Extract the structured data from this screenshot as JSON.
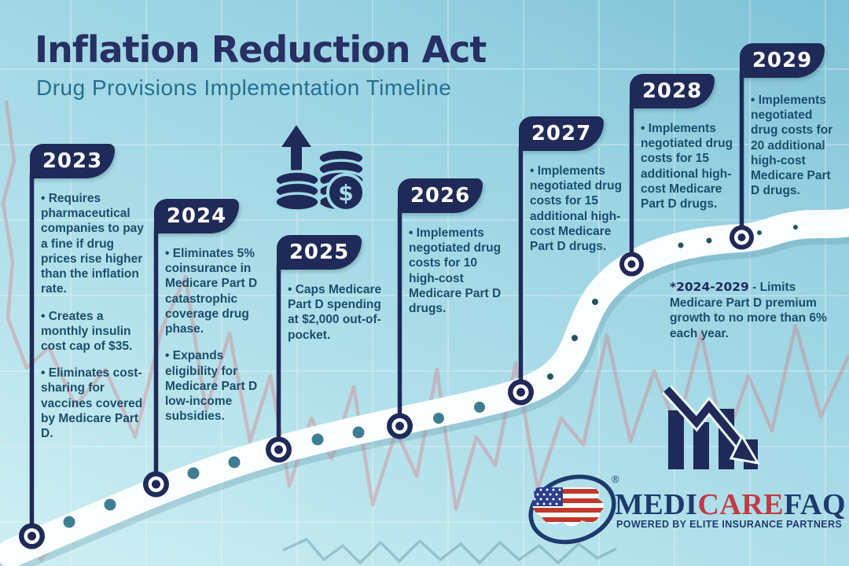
{
  "header": {
    "title": "Inflation Reduction Act",
    "subtitle": "Drug Provisions Implementation Timeline"
  },
  "timeline": {
    "years": [
      {
        "year": "2023",
        "bullets": [
          "Requires pharmaceutical companies to pay a fine if drug prices rise higher than the inflation rate.",
          "Creates a monthly insulin cost cap of $35.",
          "Eliminates cost-sharing for vaccines covered by Medicare Part D."
        ]
      },
      {
        "year": "2024",
        "bullets": [
          "Eliminates 5% coinsurance in Medicare Part D catastrophic coverage drug phase.",
          "Expands eligibility for Medicare Part D low-income subsidies."
        ]
      },
      {
        "year": "2025",
        "bullets": [
          "Caps Medicare Part D spending at $2,000 out-of-pocket."
        ]
      },
      {
        "year": "2026",
        "bullets": [
          "Implements negotiated drug costs for 10 high-cost Medicare Part D drugs."
        ]
      },
      {
        "year": "2027",
        "bullets": [
          "Implements negotiated drug costs for 15 additional high-cost Medicare Part D drugs."
        ]
      },
      {
        "year": "2028",
        "bullets": [
          "Implements negotiated drug costs for 15 additional high-cost Medicare Part D drugs."
        ]
      },
      {
        "year": "2029",
        "bullets": [
          "Implements negotiated drug costs for 20 additional high-cost Medicare Part D drugs."
        ]
      }
    ],
    "note": {
      "highlight": "*2024-2029",
      "text": " - Limits Medicare Part D premium growth to no more than 6% each year."
    }
  },
  "icons": {
    "money_growth": "rising-money-coins-icon",
    "declining_chart": "declining-bar-chart-icon",
    "dollar_sign": "$"
  },
  "logo": {
    "medi": "MEDI",
    "care": "CARE",
    "faq": "FAQ",
    "registered": "®",
    "tagline": "POWERED BY ELITE INSURANCE PARTNERS"
  },
  "colors": {
    "flag_navy": "#1f2a58",
    "title_navy": "#272f63",
    "subtitle_teal": "#25708f",
    "body_text": "#1a4e6c",
    "road_white": "#fbfeff",
    "dot_teal": "#3f7e92",
    "ekg_red": "#e26873",
    "logo_red": "#c23a45",
    "logo_navy": "#1d3a6e"
  }
}
